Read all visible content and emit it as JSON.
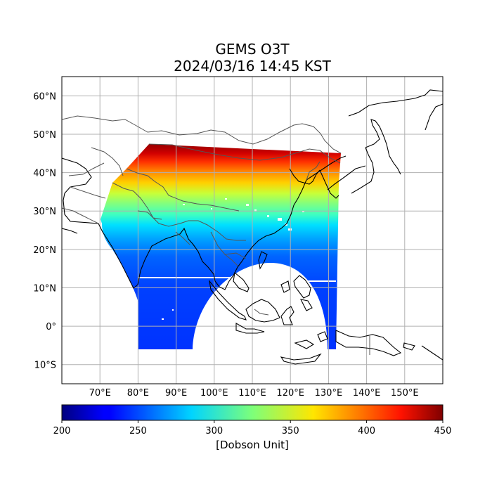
{
  "title": {
    "line1": "GEMS O3T",
    "line2": "2024/03/16 14:45 KST"
  },
  "map": {
    "lon_range": [
      60,
      160
    ],
    "lat_range": [
      -15,
      65
    ],
    "lat_ticks": [
      {
        "value": 60,
        "label": "60°N"
      },
      {
        "value": 50,
        "label": "50°N"
      },
      {
        "value": 40,
        "label": "40°N"
      },
      {
        "value": 30,
        "label": "30°N"
      },
      {
        "value": 20,
        "label": "20°N"
      },
      {
        "value": 10,
        "label": "10°N"
      },
      {
        "value": 0,
        "label": "0°"
      },
      {
        "value": -10,
        "label": "10°S"
      }
    ],
    "lon_ticks": [
      {
        "value": 70,
        "label": "70°E"
      },
      {
        "value": 80,
        "label": "80°E"
      },
      {
        "value": 90,
        "label": "90°E"
      },
      {
        "value": 100,
        "label": "100°E"
      },
      {
        "value": 110,
        "label": "110°E"
      },
      {
        "value": 120,
        "label": "120°E"
      },
      {
        "value": 130,
        "label": "130°E"
      },
      {
        "value": 140,
        "label": "140°E"
      },
      {
        "value": 150,
        "label": "150°E"
      }
    ],
    "grid": true
  },
  "colorbar": {
    "min": 200,
    "max": 450,
    "colormap": "jet",
    "ticks": [
      {
        "value": 200,
        "label": "200"
      },
      {
        "value": 250,
        "label": "250"
      },
      {
        "value": 300,
        "label": "300"
      },
      {
        "value": 350,
        "label": "350"
      },
      {
        "value": 400,
        "label": "400"
      },
      {
        "value": 450,
        "label": "450"
      }
    ],
    "label": "[Dobson Unit]"
  }
}
